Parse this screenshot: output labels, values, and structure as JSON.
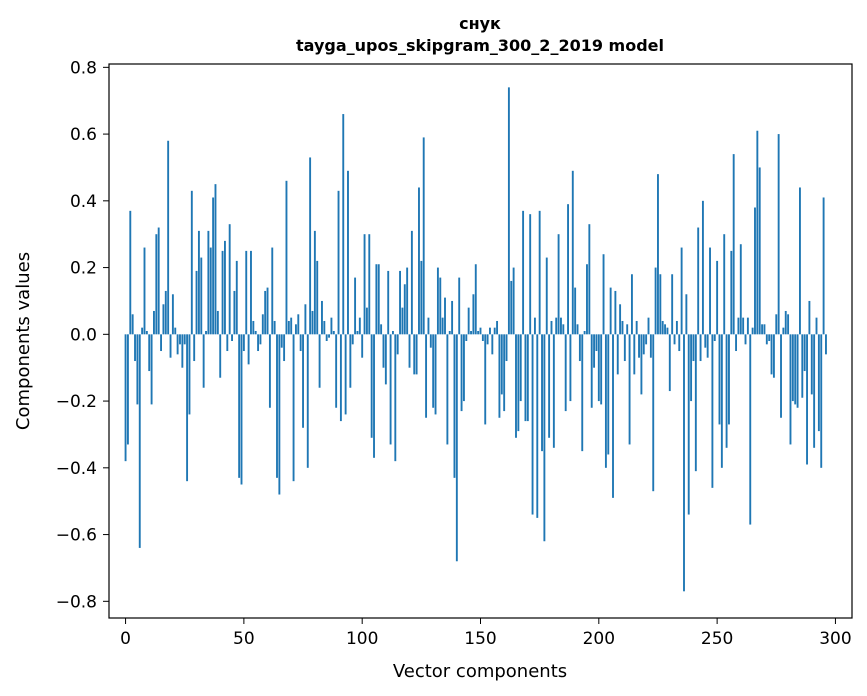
{
  "chart_data": {
    "type": "bar",
    "title": "снук",
    "subtitle": "tayga_upos_skipgram_300_2_2019 model",
    "xlabel": "Vector components",
    "ylabel": "Components values",
    "xlim": [
      -7,
      307
    ],
    "ylim": [
      -0.85,
      0.81
    ],
    "xticks": [
      0,
      50,
      100,
      150,
      200,
      250,
      300
    ],
    "xtick_labels": [
      "0",
      "50",
      "100",
      "150",
      "200",
      "250",
      "300"
    ],
    "yticks": [
      0.8,
      0.6,
      0.4,
      0.2,
      0.0,
      -0.2,
      -0.4,
      -0.6,
      -0.8
    ],
    "ytick_labels": [
      "0.8",
      "0.6",
      "0.4",
      "0.2",
      "0.0",
      "−0.2",
      "−0.4",
      "−0.6",
      "−0.8"
    ],
    "bar_color": "#1f77b4",
    "values": [
      -0.38,
      -0.33,
      0.37,
      0.06,
      -0.08,
      -0.21,
      -0.64,
      0.02,
      0.26,
      0.01,
      -0.11,
      -0.21,
      0.07,
      0.3,
      0.32,
      -0.05,
      0.09,
      0.13,
      0.58,
      -0.07,
      0.12,
      0.02,
      -0.06,
      -0.03,
      -0.1,
      -0.03,
      -0.44,
      -0.24,
      0.43,
      -0.08,
      0.19,
      0.31,
      0.23,
      -0.16,
      0.01,
      0.31,
      0.26,
      0.41,
      0.45,
      0.07,
      -0.13,
      0.25,
      0.28,
      -0.05,
      0.33,
      -0.02,
      0.13,
      0.22,
      -0.43,
      -0.45,
      -0.05,
      0.25,
      -0.09,
      0.25,
      0.04,
      0.01,
      -0.05,
      -0.03,
      0.06,
      0.13,
      0.14,
      -0.22,
      0.26,
      0.04,
      -0.43,
      -0.48,
      -0.04,
      -0.08,
      0.46,
      0.04,
      0.05,
      -0.44,
      0.03,
      0.06,
      -0.05,
      -0.28,
      0.09,
      -0.4,
      0.53,
      0.07,
      0.31,
      0.22,
      -0.16,
      0.1,
      0.04,
      -0.02,
      -0.01,
      0.05,
      0.01,
      -0.22,
      0.43,
      -0.26,
      0.66,
      -0.24,
      0.49,
      -0.16,
      -0.03,
      0.17,
      0.01,
      0.05,
      -0.07,
      0.3,
      0.08,
      0.3,
      -0.31,
      -0.37,
      0.21,
      0.21,
      0.03,
      -0.1,
      -0.15,
      0.19,
      -0.33,
      0.01,
      -0.38,
      -0.06,
      0.19,
      0.08,
      0.15,
      0.2,
      -0.1,
      0.31,
      -0.12,
      -0.12,
      0.44,
      0.22,
      0.59,
      -0.25,
      0.05,
      -0.04,
      -0.22,
      -0.24,
      0.2,
      0.17,
      0.05,
      0.11,
      -0.33,
      0.01,
      0.1,
      -0.43,
      -0.68,
      0.17,
      -0.23,
      -0.2,
      -0.02,
      0.08,
      0.01,
      0.12,
      0.21,
      0.01,
      0.02,
      -0.02,
      -0.27,
      -0.03,
      0.02,
      -0.06,
      0.02,
      0.04,
      -0.25,
      -0.18,
      -0.23,
      -0.08,
      0.74,
      0.16,
      0.2,
      -0.31,
      -0.29,
      -0.2,
      0.37,
      -0.26,
      -0.26,
      0.36,
      -0.54,
      0.05,
      -0.55,
      0.37,
      -0.35,
      -0.62,
      0.23,
      -0.31,
      0.04,
      -0.34,
      0.05,
      0.3,
      0.05,
      0.03,
      -0.23,
      0.39,
      -0.2,
      0.49,
      0.14,
      0.03,
      -0.08,
      -0.35,
      0.01,
      0.21,
      0.33,
      -0.22,
      -0.1,
      -0.05,
      -0.2,
      -0.21,
      0.24,
      -0.4,
      -0.36,
      0.14,
      -0.49,
      0.13,
      -0.12,
      0.09,
      0.04,
      -0.08,
      0.03,
      -0.33,
      0.18,
      -0.12,
      0.04,
      -0.07,
      -0.18,
      -0.06,
      -0.03,
      0.05,
      -0.07,
      -0.47,
      0.2,
      0.48,
      0.18,
      0.04,
      0.03,
      0.02,
      -0.17,
      0.18,
      -0.03,
      0.04,
      -0.05,
      0.26,
      -0.77,
      0.12,
      -0.54,
      -0.2,
      -0.08,
      -0.41,
      0.32,
      -0.08,
      0.4,
      -0.04,
      -0.07,
      0.26,
      -0.46,
      -0.02,
      0.22,
      -0.27,
      -0.4,
      0.3,
      -0.34,
      -0.27,
      0.25,
      0.54,
      -0.05,
      0.05,
      0.27,
      0.05,
      -0.03,
      0.05,
      -0.57,
      0.02,
      0.38,
      0.61,
      0.5,
      0.03,
      0.03,
      -0.03,
      -0.02,
      -0.12,
      -0.13,
      0.06,
      0.6,
      -0.25,
      0.02,
      0.07,
      0.06,
      -0.33,
      -0.2,
      -0.21,
      -0.22,
      0.44,
      -0.19,
      -0.11,
      -0.39,
      0.1,
      -0.18,
      -0.34,
      0.05,
      -0.29,
      -0.4,
      0.41,
      -0.06
    ]
  }
}
